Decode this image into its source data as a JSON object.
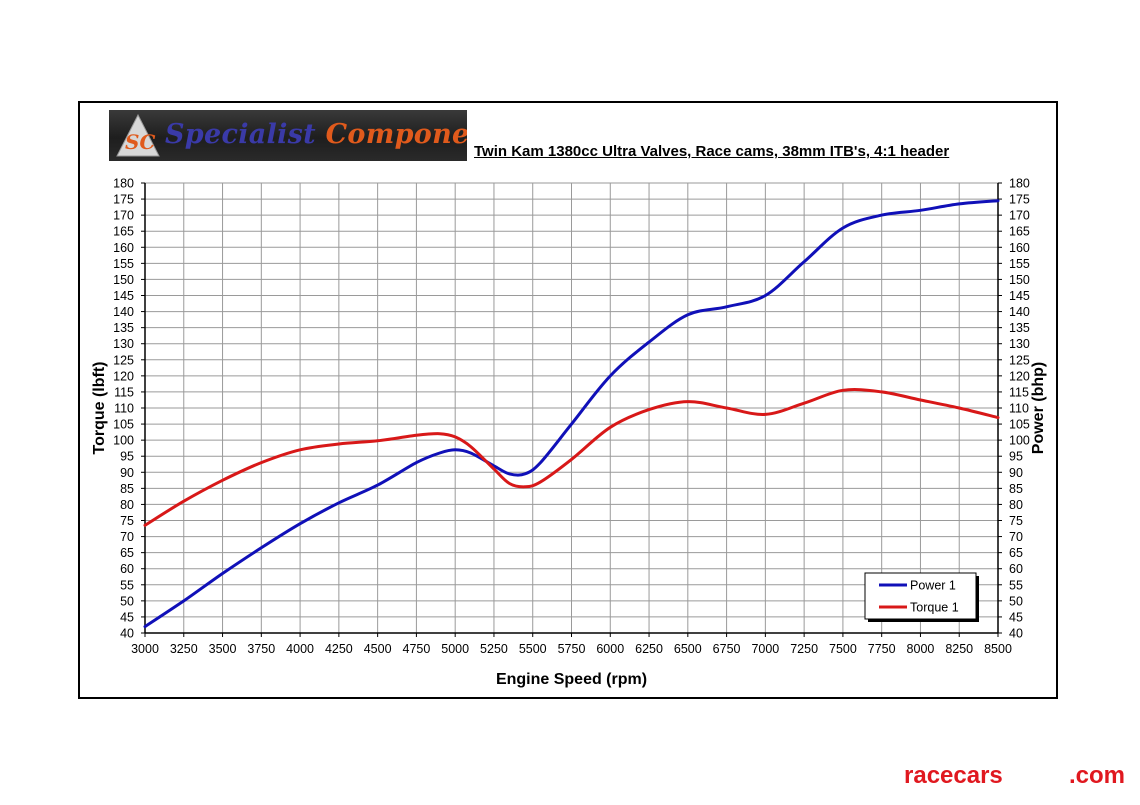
{
  "brand": {
    "logo_part1": "Specialist ",
    "logo_part2": "Components",
    "logo_mark": "SC",
    "colors": {
      "blue": "#3a3aa8",
      "orange": "#e05a1c"
    }
  },
  "watermark": {
    "part1": "racecars",
    "part2": ".com",
    "color": "#e0181f"
  },
  "chart_data": {
    "type": "line",
    "title": "Twin Kam 1380cc Ultra Valves, Race cams, 38mm ITB's, 4:1 header",
    "xlabel": "Engine Speed (rpm)",
    "ylabel_left": "Torque (lbft)",
    "ylabel_right": "Power (bhp)",
    "xlim": [
      3000,
      8500
    ],
    "x_ticks": [
      3000,
      3250,
      3500,
      3750,
      4000,
      4250,
      4500,
      4750,
      5000,
      5250,
      5500,
      5750,
      6000,
      6250,
      6500,
      6750,
      7000,
      7250,
      7500,
      7750,
      8000,
      8250,
      8500
    ],
    "ylim": [
      40,
      180
    ],
    "y_ticks": [
      40,
      45,
      50,
      55,
      60,
      65,
      70,
      75,
      80,
      85,
      90,
      95,
      100,
      105,
      110,
      115,
      120,
      125,
      130,
      135,
      140,
      145,
      150,
      155,
      160,
      165,
      170,
      175,
      180
    ],
    "grid": true,
    "legend_position": "bottom-right",
    "series": [
      {
        "name": "Power 1",
        "axis": "right",
        "color": "#1010b8",
        "x": [
          3000,
          3250,
          3500,
          3750,
          4000,
          4250,
          4500,
          4750,
          4900,
          5000,
          5100,
          5250,
          5350,
          5450,
          5550,
          5750,
          6000,
          6250,
          6500,
          6750,
          7000,
          7250,
          7500,
          7750,
          8000,
          8250,
          8500
        ],
        "y": [
          42,
          50,
          58.5,
          66.5,
          74,
          80.5,
          86,
          93,
          96,
          97,
          96,
          92,
          89.5,
          89.5,
          93,
          105,
          120,
          130.5,
          139,
          141.5,
          145,
          155.5,
          166,
          170,
          171.5,
          173.5,
          174.5
        ]
      },
      {
        "name": "Torque 1",
        "axis": "left",
        "color": "#d81818",
        "x": [
          3000,
          3250,
          3500,
          3750,
          4000,
          4250,
          4500,
          4750,
          4900,
          5000,
          5100,
          5250,
          5350,
          5450,
          5550,
          5750,
          6000,
          6250,
          6500,
          6750,
          7000,
          7250,
          7500,
          7750,
          8000,
          8250,
          8500
        ],
        "y": [
          73.5,
          81,
          87.5,
          93,
          97,
          98.8,
          99.8,
          101.5,
          102,
          101,
          98,
          91,
          86.5,
          85.5,
          87,
          94,
          104,
          109.5,
          112,
          110,
          108,
          111.5,
          115.5,
          115,
          112.5,
          110,
          107
        ]
      }
    ]
  }
}
